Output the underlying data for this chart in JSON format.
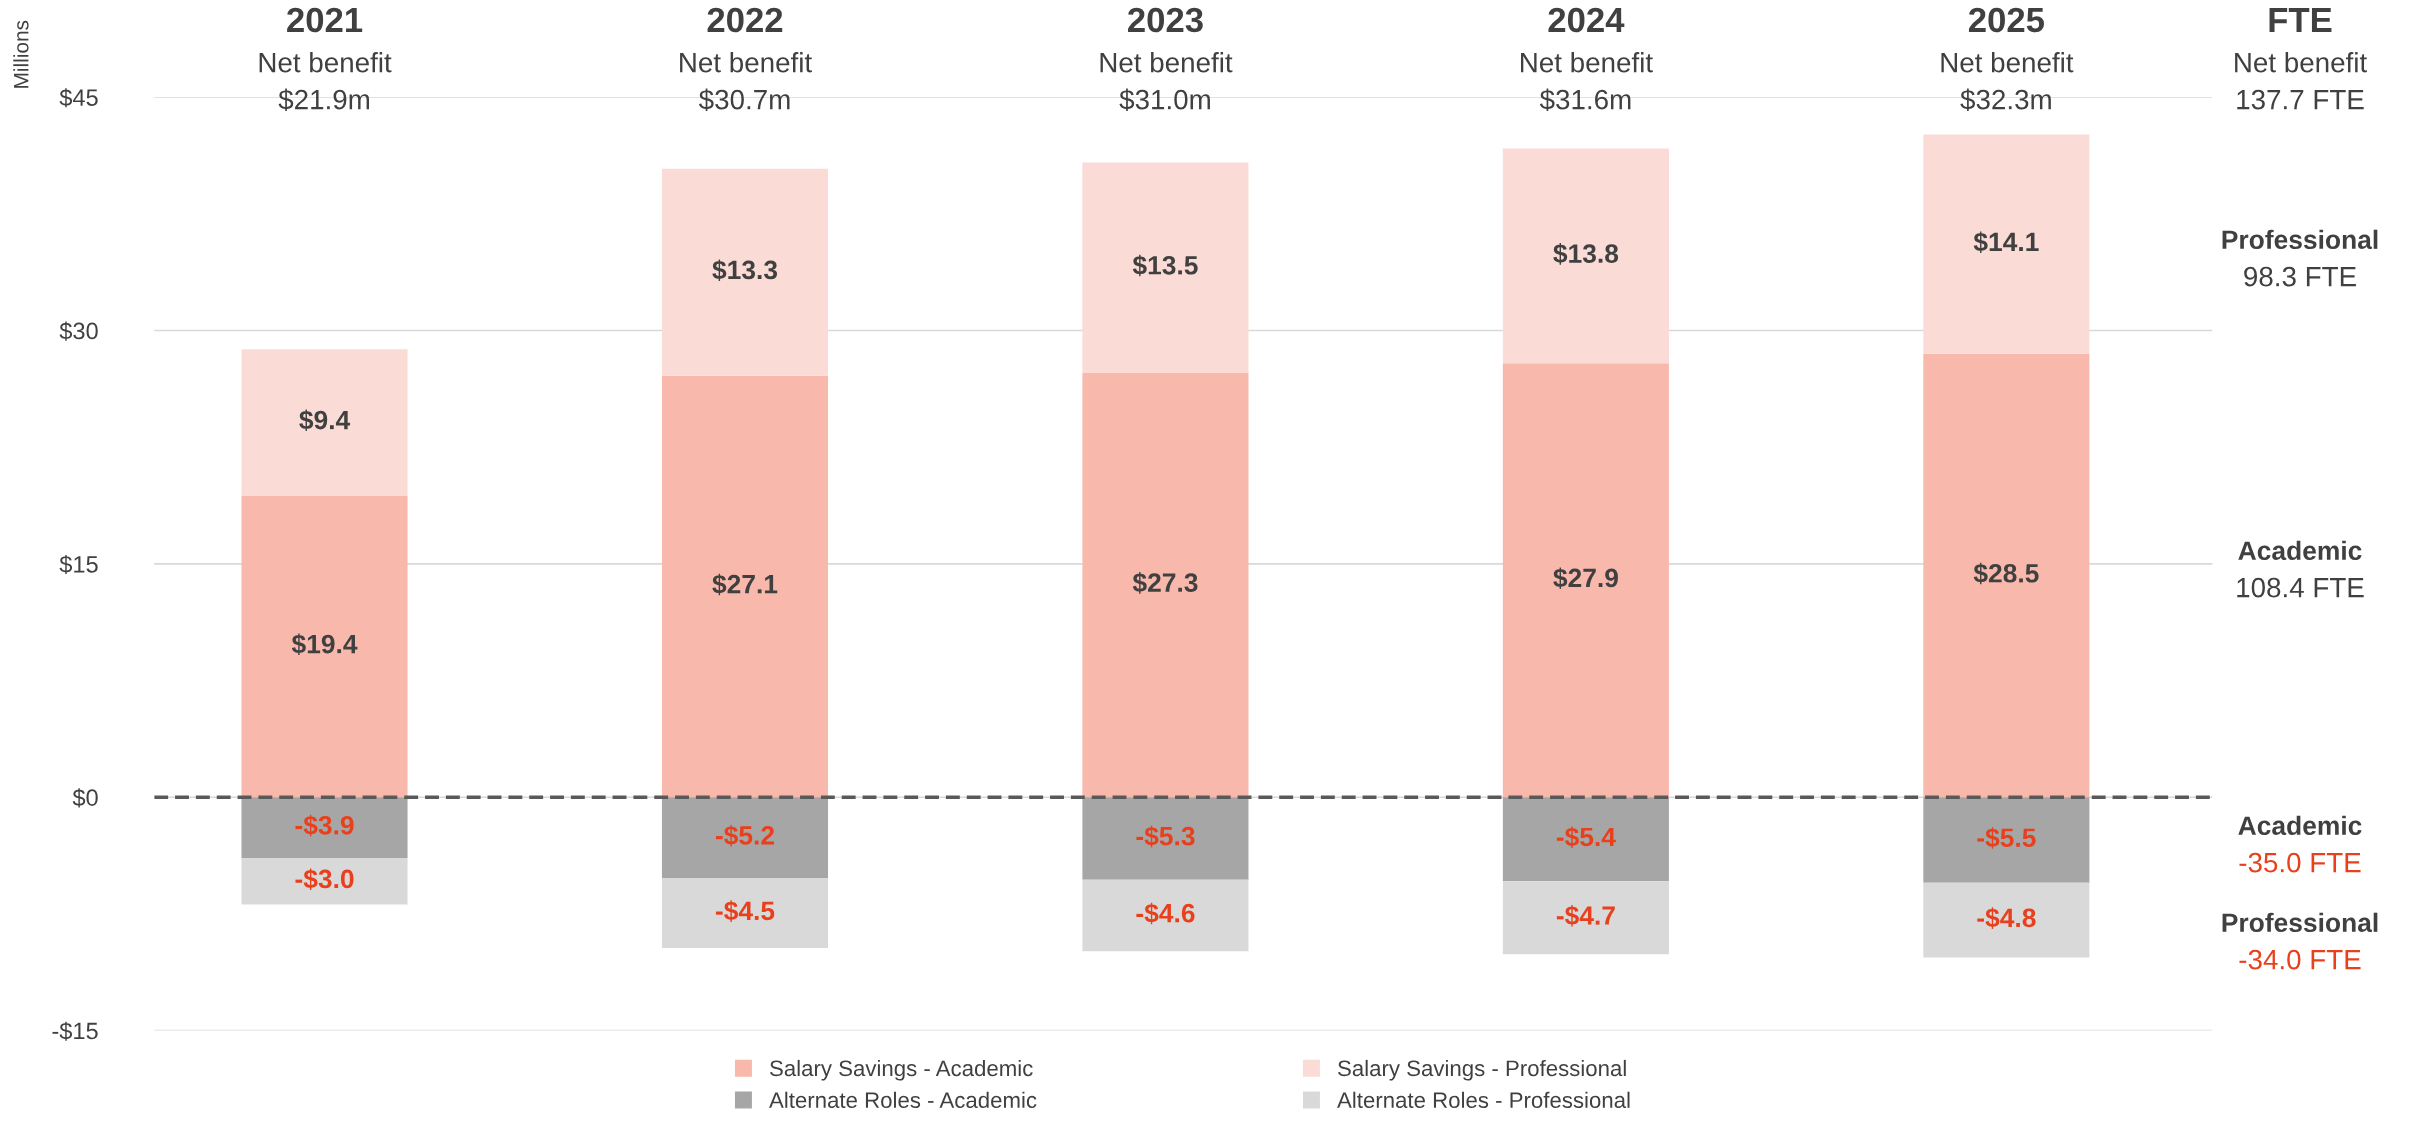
{
  "chart_data": {
    "type": "bar",
    "stacked": true,
    "categories": [
      "2021",
      "2022",
      "2023",
      "2024",
      "2025"
    ],
    "series": [
      {
        "name": "Salary Savings - Academic",
        "color": "#f8b8ab",
        "values": [
          19.4,
          27.1,
          27.3,
          27.9,
          28.5
        ],
        "value_labels": [
          "$19.4",
          "$27.1",
          "$27.3",
          "$27.9",
          "$28.5"
        ]
      },
      {
        "name": "Salary Savings - Professional",
        "color": "#fbdbd6",
        "values": [
          9.4,
          13.3,
          13.5,
          13.8,
          14.1
        ],
        "value_labels": [
          "$9.4",
          "$13.3",
          "$13.5",
          "$13.8",
          "$14.1"
        ]
      },
      {
        "name": "Alternate Roles - Academic",
        "color": "#a6a6a6",
        "values": [
          -3.9,
          -5.2,
          -5.3,
          -5.4,
          -5.5
        ],
        "value_labels": [
          "-$3.9",
          "-$5.2",
          "-$5.3",
          "-$5.4",
          "-$5.5"
        ]
      },
      {
        "name": "Alternate Roles - Professional",
        "color": "#d9d9d9",
        "values": [
          -3.0,
          -4.5,
          -4.6,
          -4.7,
          -4.8
        ],
        "value_labels": [
          "-$3.0",
          "-$4.5",
          "-$4.6",
          "-$4.7",
          "-$4.8"
        ]
      }
    ],
    "ylabel": "Millions",
    "ylim": [
      -15,
      45
    ],
    "yticks": [
      {
        "value": -15,
        "label": "-$15"
      },
      {
        "value": 0,
        "label": "$0"
      },
      {
        "value": 15,
        "label": "$15"
      },
      {
        "value": 30,
        "label": "$30"
      },
      {
        "value": 45,
        "label": "$45"
      }
    ],
    "grid": "y",
    "legend": "bottom",
    "ref_lines": [
      {
        "axis": "y",
        "value": 0,
        "color": "#595959",
        "line_style": "dashed"
      }
    ],
    "annotations": [
      "Net benefit\n$21.9m",
      "Net benefit\n$30.7m",
      "Net benefit\n$31.0m",
      "Net benefit\n$31.6m",
      "Net benefit\n$32.3m",
      "FTE\nNet benefit\n137.7 FTE",
      "Professional\n98.3 FTE",
      "Academic\n108.4 FTE",
      "Academic\n-35.0 FTE",
      "Professional\n-34.0 FTE"
    ]
  }
}
